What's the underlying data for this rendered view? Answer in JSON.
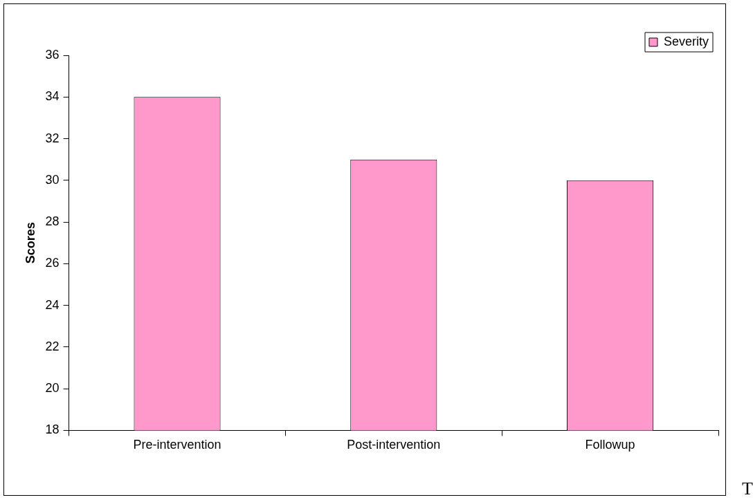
{
  "chart_data": {
    "type": "bar",
    "ylabel": "Scores",
    "categories": [
      "Pre-intervention",
      "Post-intervention",
      "Followup"
    ],
    "series": [
      {
        "name": "Severity",
        "color": "#ff99cc",
        "values": [
          34,
          31,
          30
        ]
      }
    ],
    "ylim": [
      18,
      36
    ],
    "yticks": [
      18,
      20,
      22,
      24,
      26,
      28,
      30,
      32,
      34,
      36
    ],
    "grid": false,
    "legend": "top right",
    "annotations": [
      "T"
    ]
  }
}
